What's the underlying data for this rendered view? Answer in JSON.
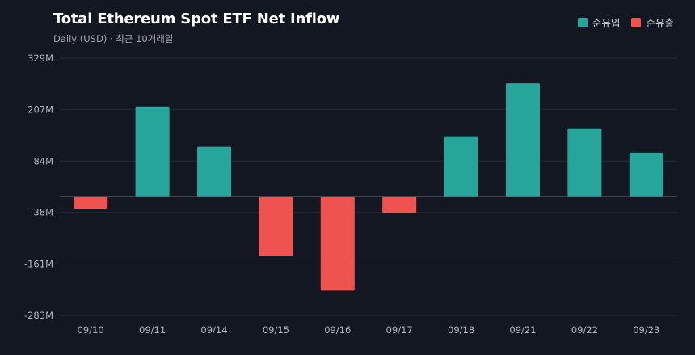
{
  "title": "Total Ethereum Spot ETF Net Inflow",
  "subtitle": "Daily (USD) · 최근 10거래일",
  "legend": [
    {
      "label": "순유입",
      "color": "#26a69a"
    },
    {
      "label": "순유출",
      "color": "#ef5350"
    }
  ],
  "chart_data": {
    "type": "bar",
    "title": "Total Ethereum Spot ETF Net Inflow",
    "subtitle": "Daily (USD) · 최근 10거래일",
    "categories": [
      "09/10",
      "09/11",
      "09/14",
      "09/15",
      "09/16",
      "09/17",
      "09/18",
      "09/21",
      "09/22",
      "09/23"
    ],
    "values": [
      -29,
      214,
      118,
      -141,
      -224,
      -39,
      143,
      269,
      162,
      104
    ],
    "units": "M USD",
    "yticks": [
      329,
      207,
      84,
      -38,
      -161,
      -283
    ],
    "ytick_labels": [
      "329M",
      "207M",
      "84M",
      "-38M",
      "-161M",
      "-283M"
    ],
    "ylim": [
      -283,
      329
    ],
    "grid": true,
    "positive_color": "#26a69a",
    "negative_color": "#ef5350",
    "legend_position": "top-right"
  }
}
